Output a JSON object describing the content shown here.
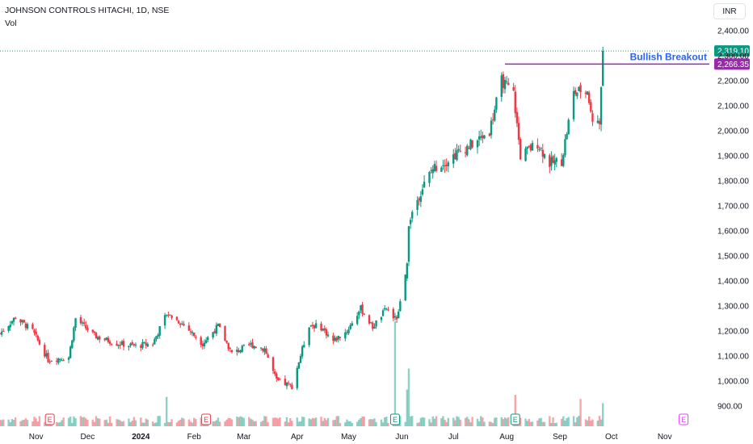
{
  "header": {
    "symbol_line": "JOHNSON CONTROLS HITACHI, 1D, NSE",
    "vol_label": "Vol",
    "currency": "INR"
  },
  "chart_data": {
    "type": "candlestick",
    "title": "JOHNSON CONTROLS HITACHI, 1D, NSE",
    "xlabel": "",
    "ylabel": "",
    "ylim": [
      860,
      2460
    ],
    "y_ticks": [
      900,
      1000,
      1100,
      1200,
      1300,
      1400,
      1500,
      1600,
      1700,
      1800,
      1900,
      2000,
      2100,
      2200,
      2300,
      2400
    ],
    "y_tick_labels": [
      "900.00",
      "1,000.00",
      "1,100.00",
      "1,200.00",
      "1,300.00",
      "1,400.00",
      "1,500.00",
      "1,600.00",
      "1,700.00",
      "1,800.00",
      "1,900.00",
      "2,000.00",
      "2,100.00",
      "2,200.00",
      "2,300.00",
      "2,400.00"
    ],
    "x_ticks": [
      "Nov",
      "Dec",
      "2024",
      "Feb",
      "Mar",
      "Apr",
      "May",
      "Jun",
      "Jul",
      "Aug",
      "Sep",
      "Oct",
      "Nov"
    ],
    "x_tick_dates": [
      "2023-11-01",
      "2023-12-01",
      "2024-01-01",
      "2024-02-01",
      "2024-03-01",
      "2024-04-01",
      "2024-05-01",
      "2024-06-01",
      "2024-07-01",
      "2024-08-01",
      "2024-09-01",
      "2024-10-01",
      "2024-11-01"
    ],
    "x_range": [
      "2023-10-11",
      "2024-11-27"
    ],
    "grid": false,
    "price_path": [
      [
        "2023-10-11",
        1190
      ],
      [
        "2023-10-20",
        1255
      ],
      [
        "2023-10-30",
        1200
      ],
      [
        "2023-11-08",
        1085
      ],
      [
        "2023-11-20",
        1095
      ],
      [
        "2023-11-24",
        1250
      ],
      [
        "2023-12-05",
        1180
      ],
      [
        "2023-12-18",
        1150
      ],
      [
        "2023-12-29",
        1140
      ],
      [
        "2024-01-08",
        1150
      ],
      [
        "2024-01-16",
        1270
      ],
      [
        "2024-01-25",
        1230
      ],
      [
        "2024-02-06",
        1150
      ],
      [
        "2024-02-15",
        1220
      ],
      [
        "2024-02-23",
        1110
      ],
      [
        "2024-03-05",
        1145
      ],
      [
        "2024-03-13",
        1130
      ],
      [
        "2024-03-20",
        1000
      ],
      [
        "2024-03-29",
        980
      ],
      [
        "2024-04-08",
        1225
      ],
      [
        "2024-04-15",
        1215
      ],
      [
        "2024-04-22",
        1160
      ],
      [
        "2024-04-30",
        1200
      ],
      [
        "2024-05-08",
        1290
      ],
      [
        "2024-05-15",
        1215
      ],
      [
        "2024-05-23",
        1290
      ],
      [
        "2024-05-29",
        1240
      ],
      [
        "2024-06-04",
        1470
      ],
      [
        "2024-06-05",
        1640
      ],
      [
        "2024-06-12",
        1760
      ],
      [
        "2024-06-19",
        1850
      ],
      [
        "2024-06-27",
        1880
      ],
      [
        "2024-07-05",
        1920
      ],
      [
        "2024-07-15",
        1960
      ],
      [
        "2024-07-22",
        2000
      ],
      [
        "2024-07-29",
        2200
      ],
      [
        "2024-08-05",
        2150
      ],
      [
        "2024-08-09",
        1900
      ],
      [
        "2024-08-19",
        1950
      ],
      [
        "2024-08-26",
        1870
      ],
      [
        "2024-09-02",
        1880
      ],
      [
        "2024-09-09",
        2150
      ],
      [
        "2024-09-16",
        2170
      ],
      [
        "2024-09-20",
        2050
      ],
      [
        "2024-09-24",
        2030
      ],
      [
        "2024-09-26",
        2290
      ]
    ],
    "last_price": 2319.1,
    "last_price_label": "2,319.10",
    "resistance": {
      "value": 2266.35,
      "label": "2,266.35",
      "start": "2024-07-31",
      "end": "2024-11-27"
    },
    "annotation": "Bullish Breakout",
    "earnings_markers": [
      {
        "date": "2023-11-09",
        "label": "E",
        "color": "#f23645"
      },
      {
        "date": "2024-02-08",
        "label": "E",
        "color": "#f23645"
      },
      {
        "date": "2024-05-28",
        "label": "E",
        "color": "#089981"
      },
      {
        "date": "2024-08-06",
        "label": "E",
        "color": "#089981"
      },
      {
        "date": "2024-11-12",
        "label": "E",
        "color": "#e040fb"
      }
    ],
    "volume_spikes": [
      {
        "date": "2024-05-28",
        "value": 100
      },
      {
        "date": "2024-06-04",
        "value": 35
      },
      {
        "date": "2024-06-05",
        "value": 55
      },
      {
        "date": "2024-01-16",
        "value": 28
      },
      {
        "date": "2024-08-06",
        "value": 30
      },
      {
        "date": "2024-09-13",
        "value": 26
      },
      {
        "date": "2024-09-26",
        "value": 22
      }
    ],
    "colors": {
      "up": "#089981",
      "down": "#f23645",
      "resistance": "#9c27b0",
      "annotation": "#2962ff",
      "last_price_dotted": "#089981",
      "axis_text": "#131722"
    }
  }
}
